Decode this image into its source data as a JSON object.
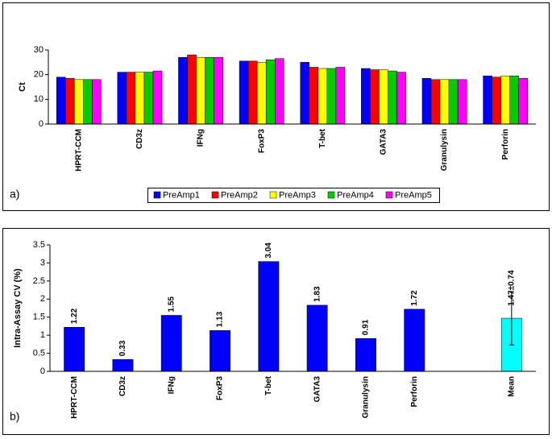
{
  "chart_data": [
    {
      "type": "grouped-bar",
      "panel_label": "a)",
      "y_label": "Ct",
      "categories": [
        "HPRT-CCM",
        "CD3z",
        "IFNg",
        "FoxP3",
        "T-bet",
        "GATA3",
        "Granulysin",
        "Perforin"
      ],
      "series": [
        {
          "name": "PreAmp1",
          "color": "#0000ff",
          "values": [
            19,
            21,
            27,
            25.5,
            25,
            22.5,
            18.5,
            19.5
          ]
        },
        {
          "name": "PreAmp2",
          "color": "#ff0000",
          "values": [
            18.5,
            21,
            28,
            25.5,
            23,
            22,
            18,
            19
          ]
        },
        {
          "name": "PreAmp3",
          "color": "#ffff00",
          "values": [
            18,
            21,
            27,
            25,
            22.5,
            22,
            18,
            19.5
          ]
        },
        {
          "name": "PreAmp4",
          "color": "#00cc00",
          "values": [
            18,
            21,
            27,
            26,
            22.5,
            21.5,
            18,
            19.5
          ]
        },
        {
          "name": "PreAmp5",
          "color": "#ff00ff",
          "values": [
            18,
            21.5,
            27,
            26.5,
            23,
            21,
            18,
            18.5
          ]
        }
      ],
      "ylim": [
        0,
        30
      ],
      "yticks": [
        0,
        10,
        20,
        30
      ],
      "legend": "bottom"
    },
    {
      "type": "bar",
      "panel_label": "b)",
      "y_label": "Intra-Assay CV (%)",
      "categories": [
        "HPRT-CCM",
        "CD3z",
        "IFNg",
        "FoxP3",
        "T-bet",
        "GATA3",
        "Granulysin",
        "Perforin",
        null,
        "Mean"
      ],
      "values": [
        1.22,
        0.33,
        1.55,
        1.13,
        3.04,
        1.83,
        0.91,
        1.72,
        null,
        1.47
      ],
      "value_labels": [
        "1.22",
        "0.33",
        "1.55",
        "1.13",
        "3.04",
        "1.83",
        "0.91",
        "1.72",
        null,
        "1.47±0.74"
      ],
      "errors": [
        null,
        null,
        null,
        null,
        null,
        null,
        null,
        null,
        null,
        0.74
      ],
      "colors": [
        "#0000ff",
        "#0000ff",
        "#0000ff",
        "#0000ff",
        "#0000ff",
        "#0000ff",
        "#0000ff",
        "#0000ff",
        null,
        "#00ffff"
      ],
      "ylim": [
        0,
        3.5
      ],
      "yticks": [
        0,
        0.5,
        1,
        1.5,
        2,
        2.5,
        3,
        3.5
      ]
    }
  ]
}
